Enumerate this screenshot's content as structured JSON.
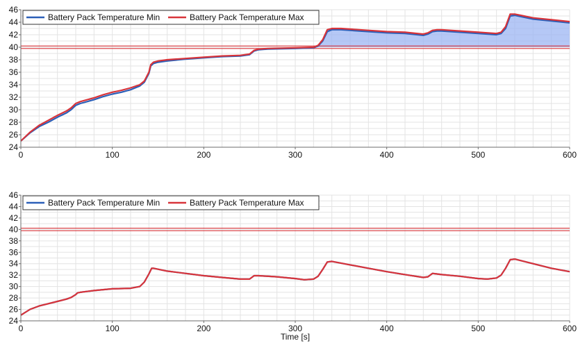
{
  "colors": {
    "min_line": "#2b5fb8",
    "max_line": "#d8343a",
    "limit_line": "#d8343a",
    "fill_area": "#9cb6f3",
    "grid": "#e3e3e3",
    "axis": "#6b6b6b"
  },
  "chart_data": [
    {
      "type": "line",
      "title": "",
      "xlabel": "",
      "ylabel": "",
      "xlim": [
        0,
        600
      ],
      "ylim": [
        24,
        46
      ],
      "xticks": [
        "0",
        "100",
        "200",
        "300",
        "400",
        "500",
        "600"
      ],
      "yticks": [
        "24",
        "26",
        "28",
        "30",
        "32",
        "34",
        "36",
        "38",
        "40",
        "42",
        "44",
        "46"
      ],
      "grid": true,
      "legend_position": "top-left",
      "reference_line": 40,
      "shaded_region": "between Max and 40 where Max exceeds 40",
      "series": [
        {
          "name": "Battery Pack Temperature Min",
          "color": "#2b5fb8",
          "x": [
            0,
            10,
            20,
            30,
            40,
            50,
            55,
            60,
            65,
            80,
            90,
            100,
            110,
            120,
            130,
            135,
            140,
            142,
            145,
            150,
            160,
            180,
            200,
            220,
            240,
            250,
            255,
            260,
            270,
            300,
            320,
            325,
            330,
            335,
            340,
            350,
            360,
            380,
            400,
            420,
            440,
            445,
            450,
            455,
            460,
            480,
            500,
            520,
            525,
            530,
            535,
            540,
            550,
            560,
            580,
            600
          ],
          "y": [
            25.0,
            26.3,
            27.3,
            28.0,
            28.8,
            29.5,
            30.0,
            30.7,
            31.0,
            31.6,
            32.1,
            32.5,
            32.8,
            33.2,
            33.8,
            34.4,
            35.8,
            37.0,
            37.4,
            37.6,
            37.8,
            38.1,
            38.3,
            38.5,
            38.6,
            38.8,
            39.4,
            39.6,
            39.7,
            39.8,
            39.9,
            40.2,
            41.0,
            42.5,
            42.8,
            42.8,
            42.7,
            42.5,
            42.3,
            42.2,
            41.9,
            42.1,
            42.5,
            42.6,
            42.6,
            42.4,
            42.2,
            42.0,
            42.2,
            43.0,
            45.0,
            45.1,
            44.8,
            44.5,
            44.2,
            43.9
          ]
        },
        {
          "name": "Battery Pack Temperature Max",
          "color": "#d8343a",
          "x": [
            0,
            10,
            20,
            30,
            40,
            50,
            55,
            60,
            65,
            80,
            90,
            100,
            110,
            120,
            130,
            135,
            140,
            142,
            145,
            150,
            160,
            180,
            200,
            220,
            240,
            250,
            255,
            260,
            270,
            300,
            320,
            325,
            330,
            335,
            340,
            350,
            360,
            380,
            400,
            420,
            440,
            445,
            450,
            455,
            460,
            480,
            500,
            520,
            525,
            530,
            535,
            540,
            550,
            560,
            580,
            600
          ],
          "y": [
            25.0,
            26.4,
            27.5,
            28.3,
            29.1,
            29.8,
            30.3,
            31.0,
            31.3,
            31.9,
            32.4,
            32.8,
            33.1,
            33.5,
            34.0,
            34.6,
            36.0,
            37.2,
            37.6,
            37.8,
            38.0,
            38.2,
            38.4,
            38.6,
            38.7,
            38.9,
            39.5,
            39.7,
            39.8,
            39.9,
            40.0,
            40.3,
            41.2,
            42.8,
            43.0,
            43.0,
            42.9,
            42.7,
            42.5,
            42.4,
            42.1,
            42.3,
            42.7,
            42.8,
            42.8,
            42.6,
            42.4,
            42.2,
            42.4,
            43.3,
            45.3,
            45.3,
            45.0,
            44.7,
            44.4,
            44.1
          ]
        }
      ]
    },
    {
      "type": "line",
      "title": "",
      "xlabel": "Time [s]",
      "ylabel": "",
      "xlim": [
        0,
        600
      ],
      "ylim": [
        24,
        46
      ],
      "xticks": [
        "0",
        "100",
        "200",
        "300",
        "400",
        "500",
        "600"
      ],
      "yticks": [
        "24",
        "26",
        "28",
        "30",
        "32",
        "34",
        "36",
        "38",
        "40",
        "42",
        "44",
        "46"
      ],
      "grid": true,
      "legend_position": "top-left",
      "reference_line": 40,
      "series": [
        {
          "name": "Battery Pack Temperature Min",
          "color": "#2b5fb8",
          "x": [
            0,
            10,
            20,
            30,
            40,
            50,
            55,
            60,
            62,
            65,
            80,
            100,
            120,
            130,
            135,
            140,
            143,
            145,
            160,
            180,
            200,
            220,
            240,
            250,
            255,
            260,
            280,
            300,
            310,
            320,
            325,
            330,
            335,
            340,
            360,
            380,
            400,
            420,
            440,
            445,
            450,
            455,
            460,
            480,
            500,
            510,
            520,
            525,
            530,
            535,
            540,
            560,
            580,
            600
          ],
          "y": [
            25.0,
            26.0,
            26.6,
            27.0,
            27.4,
            27.8,
            28.1,
            28.6,
            28.9,
            29.0,
            29.3,
            29.6,
            29.7,
            30.0,
            30.8,
            32.2,
            33.2,
            33.2,
            32.7,
            32.3,
            31.9,
            31.6,
            31.3,
            31.3,
            31.9,
            31.9,
            31.7,
            31.4,
            31.2,
            31.3,
            31.8,
            33.0,
            34.3,
            34.4,
            33.8,
            33.2,
            32.6,
            32.1,
            31.6,
            31.7,
            32.3,
            32.2,
            32.1,
            31.8,
            31.4,
            31.3,
            31.5,
            32.0,
            33.2,
            34.7,
            34.8,
            34.0,
            33.2,
            32.6
          ]
        },
        {
          "name": "Battery Pack Temperature Max",
          "color": "#d8343a",
          "x": [
            0,
            10,
            20,
            30,
            40,
            50,
            55,
            60,
            62,
            65,
            80,
            100,
            120,
            130,
            135,
            140,
            143,
            145,
            160,
            180,
            200,
            220,
            240,
            250,
            255,
            260,
            280,
            300,
            310,
            320,
            325,
            330,
            335,
            340,
            360,
            380,
            400,
            420,
            440,
            445,
            450,
            455,
            460,
            480,
            500,
            510,
            520,
            525,
            530,
            535,
            540,
            560,
            580,
            600
          ],
          "y": [
            25.0,
            26.0,
            26.6,
            27.0,
            27.4,
            27.8,
            28.1,
            28.6,
            28.9,
            29.0,
            29.3,
            29.6,
            29.7,
            30.0,
            30.8,
            32.2,
            33.2,
            33.2,
            32.7,
            32.3,
            31.9,
            31.6,
            31.3,
            31.3,
            31.9,
            31.9,
            31.7,
            31.4,
            31.2,
            31.3,
            31.8,
            33.0,
            34.3,
            34.4,
            33.8,
            33.2,
            32.6,
            32.1,
            31.6,
            31.7,
            32.3,
            32.2,
            32.1,
            31.8,
            31.4,
            31.3,
            31.5,
            32.0,
            33.2,
            34.7,
            34.8,
            34.0,
            33.2,
            32.6
          ]
        }
      ]
    }
  ]
}
